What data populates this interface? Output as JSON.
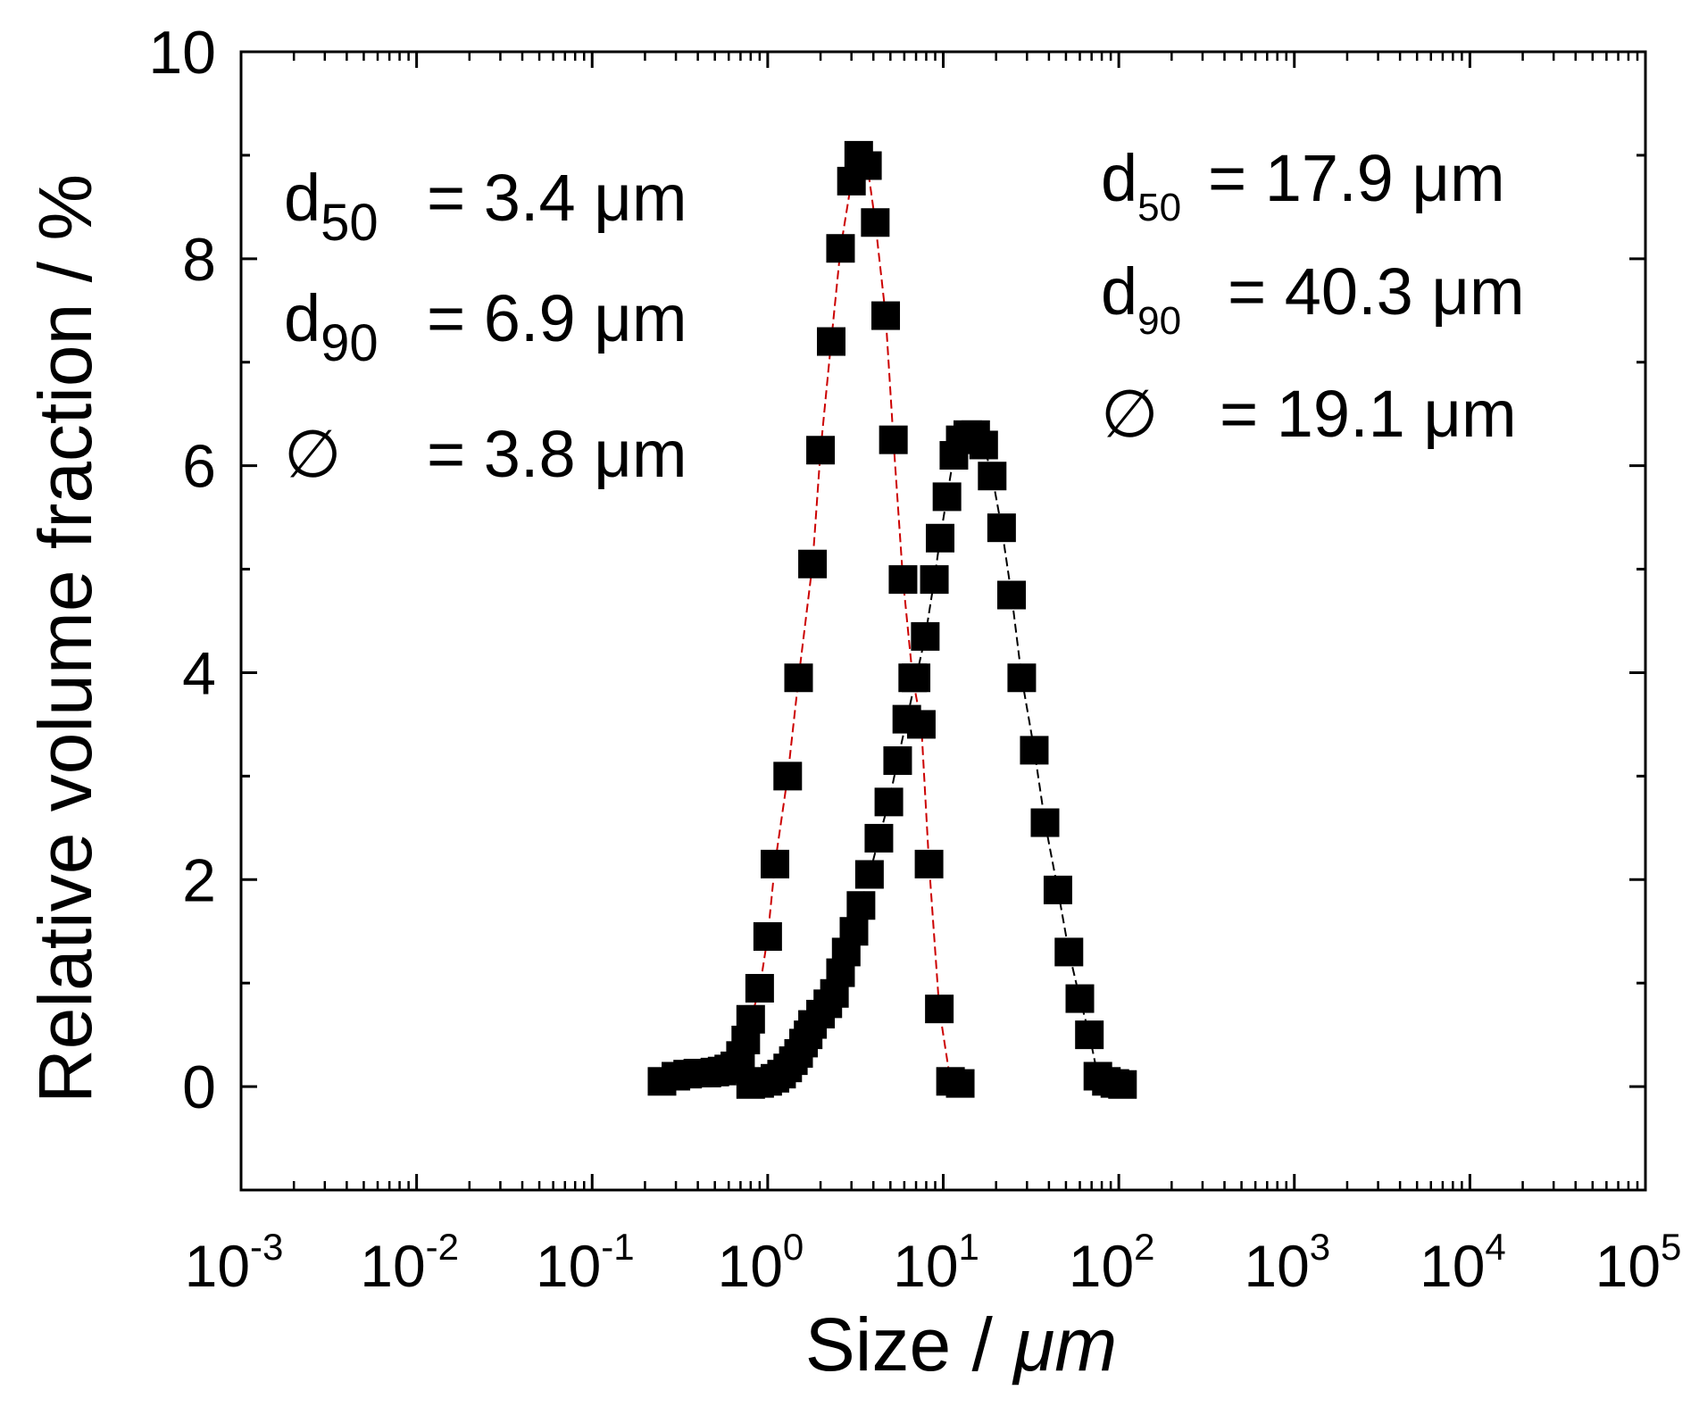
{
  "chart_data": {
    "type": "scatter",
    "xlabel_pre": "Size",
    "xlabel_sep": "/",
    "xlabel_unit": "μm",
    "ylabel": "Relative volume fraction  /  %",
    "xscale": "log",
    "xlim": [
      0.001,
      100000
    ],
    "ylim": [
      -1,
      10
    ],
    "x_ticks": [
      {
        "base": "10",
        "exp": "-3"
      },
      {
        "base": "10",
        "exp": "-2"
      },
      {
        "base": "10",
        "exp": "-1"
      },
      {
        "base": "10",
        "exp": "0"
      },
      {
        "base": "10",
        "exp": "1"
      },
      {
        "base": "10",
        "exp": "2"
      },
      {
        "base": "10",
        "exp": "3"
      },
      {
        "base": "10",
        "exp": "4"
      },
      {
        "base": "10",
        "exp": "5"
      }
    ],
    "y_ticks": [
      "0",
      "2",
      "4",
      "6",
      "8",
      "10"
    ],
    "grid": false,
    "series": [
      {
        "line_color": "#cc0000",
        "marker_color": "#000000",
        "x": [
          0.25,
          0.3,
          0.35,
          0.4,
          0.45,
          0.5,
          0.55,
          0.6,
          0.65,
          0.7,
          0.75,
          0.8,
          0.9,
          1.0,
          1.1,
          1.3,
          1.5,
          1.8,
          2.0,
          2.3,
          2.6,
          3.0,
          3.3,
          3.7,
          4.1,
          4.7,
          5.2,
          5.9,
          6.7,
          7.5,
          8.3,
          9.5,
          11.0,
          12.5
        ],
        "y": [
          0.05,
          0.1,
          0.12,
          0.13,
          0.13,
          0.14,
          0.15,
          0.17,
          0.2,
          0.3,
          0.45,
          0.65,
          0.95,
          1.45,
          2.15,
          3.0,
          3.95,
          5.05,
          6.15,
          7.2,
          8.1,
          8.75,
          9.0,
          8.9,
          8.35,
          7.45,
          6.25,
          4.9,
          3.95,
          3.5,
          2.15,
          0.75,
          0.05,
          0.03
        ]
      },
      {
        "line_color": "#000000",
        "marker_color": "#000000",
        "x": [
          0.8,
          0.9,
          1.0,
          1.1,
          1.2,
          1.3,
          1.4,
          1.5,
          1.6,
          1.7,
          1.8,
          2.0,
          2.2,
          2.4,
          2.6,
          2.8,
          3.1,
          3.4,
          3.8,
          4.3,
          4.9,
          5.5,
          6.2,
          7.0,
          7.9,
          8.9,
          9.6,
          10.5,
          11.5,
          12.5,
          13.8,
          15.3,
          17.0,
          19.0,
          21.5,
          24.5,
          28.0,
          33.0,
          38.0,
          45.0,
          52.0,
          60.0,
          68.0,
          76.0,
          85.0,
          95.0,
          105.0
        ],
        "y": [
          0.02,
          0.03,
          0.05,
          0.08,
          0.12,
          0.18,
          0.25,
          0.32,
          0.42,
          0.5,
          0.6,
          0.7,
          0.8,
          0.9,
          1.1,
          1.3,
          1.5,
          1.75,
          2.05,
          2.4,
          2.75,
          3.15,
          3.55,
          3.95,
          4.35,
          4.9,
          5.3,
          5.7,
          6.1,
          6.25,
          6.3,
          6.3,
          6.2,
          5.9,
          5.4,
          4.75,
          3.95,
          3.25,
          2.55,
          1.9,
          1.3,
          0.85,
          0.5,
          0.1,
          0.05,
          0.03,
          0.02
        ]
      }
    ],
    "annotations": {
      "left": {
        "d50_name": "d",
        "d50_sub": "50",
        "d50_eq": "= 3.4 μm",
        "d90_name": "d",
        "d90_sub": "90",
        "d90_eq": "= 6.9 μm",
        "dia_name": "∅",
        "dia_eq": "= 3.8 μm"
      },
      "right": {
        "d50_name": "d",
        "d50_sub": "50",
        "d50_eq": "= 17.9 μm",
        "d90_name": "d",
        "d90_sub": "90",
        "d90_eq": "= 40.3 μm",
        "dia_name": "∅",
        "dia_eq": "= 19.1 μm"
      }
    }
  }
}
